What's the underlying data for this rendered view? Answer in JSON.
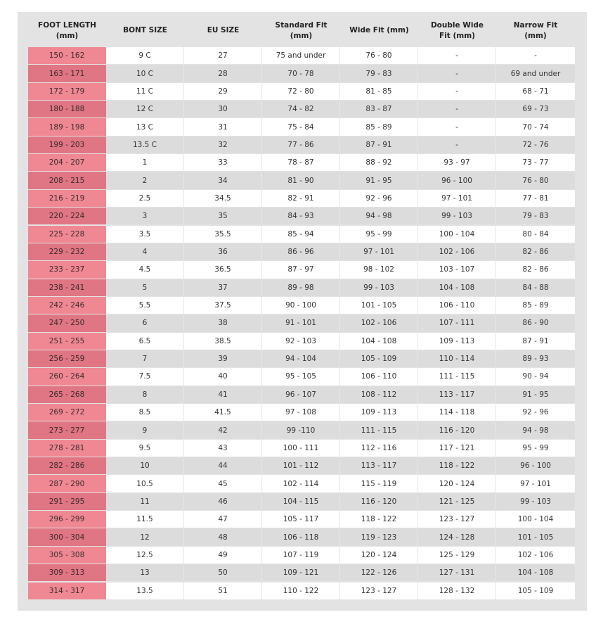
{
  "table": {
    "headers": [
      "FOOT LENGTH (mm)",
      "BONT SIZE",
      "EU SIZE",
      "Standard Fit (mm)",
      "Wide Fit (mm)",
      "Double Wide Fit (mm)",
      "Narrow Fit (mm)"
    ],
    "rows": [
      [
        "150 - 162",
        "9 C",
        "27",
        "75 and under",
        "76 - 80",
        "-",
        "-"
      ],
      [
        "163 - 171",
        "10 C",
        "28",
        "70 - 78",
        "79 - 83",
        "-",
        "69 and under"
      ],
      [
        "172 - 179",
        "11 C",
        "29",
        "72 - 80",
        "81 - 85",
        "-",
        "68 - 71"
      ],
      [
        "180 - 188",
        "12 C",
        "30",
        "74 - 82",
        "83 - 87",
        "-",
        "69 - 73"
      ],
      [
        "189 - 198",
        "13 C",
        "31",
        "75 - 84",
        "85 - 89",
        "-",
        "70 - 74"
      ],
      [
        "199 - 203",
        "13.5 C",
        "32",
        "77 - 86",
        "87 - 91",
        "-",
        "72 - 76"
      ],
      [
        "204 - 207",
        "1",
        "33",
        "78 - 87",
        "88 - 92",
        "93 - 97",
        "73 - 77"
      ],
      [
        "208 - 215",
        "2",
        "34",
        "81 - 90",
        "91 - 95",
        "96 - 100",
        "76 - 80"
      ],
      [
        "216 - 219",
        "2.5",
        "34.5",
        "82 - 91",
        "92 - 96",
        "97 - 101",
        "77 - 81"
      ],
      [
        "220 - 224",
        "3",
        "35",
        "84 - 93",
        "94 - 98",
        "99 - 103",
        "79 - 83"
      ],
      [
        "225 - 228",
        "3.5",
        "35.5",
        "85 - 94",
        "95 - 99",
        "100 - 104",
        "80 - 84"
      ],
      [
        "229 - 232",
        "4",
        "36",
        "86 - 96",
        "97 - 101",
        "102 - 106",
        "82 - 86"
      ],
      [
        "233 - 237",
        "4.5",
        "36.5",
        "87 - 97",
        "98 - 102",
        "103 - 107",
        "82 - 86"
      ],
      [
        "238 - 241",
        "5",
        "37",
        "89 - 98",
        "99 - 103",
        "104 - 108",
        "84 - 88"
      ],
      [
        "242 - 246",
        "5.5",
        "37.5",
        "90 - 100",
        "101 - 105",
        "106 - 110",
        "85 - 89"
      ],
      [
        "247 - 250",
        "6",
        "38",
        "91 - 101",
        "102 - 106",
        "107 - 111",
        "86 - 90"
      ],
      [
        "251 - 255",
        "6.5",
        "38.5",
        "92 - 103",
        "104 - 108",
        "109 - 113",
        "87 - 91"
      ],
      [
        "256 - 259",
        "7",
        "39",
        "94 - 104",
        "105 - 109",
        "110 - 114",
        "89 - 93"
      ],
      [
        "260 - 264",
        "7.5",
        "40",
        "95 - 105",
        "106 - 110",
        "111 - 115",
        "90 - 94"
      ],
      [
        "265 - 268",
        "8",
        "41",
        "96 - 107",
        "108 - 112",
        "113 - 117",
        "91 - 95"
      ],
      [
        "269 - 272",
        "8.5",
        "41.5",
        "97 - 108",
        "109 - 113",
        "114 - 118",
        "92 - 96"
      ],
      [
        "273 - 277",
        "9",
        "42",
        "99 -110",
        "111 - 115",
        "116 - 120",
        "94 - 98"
      ],
      [
        "278 - 281",
        "9.5",
        "43",
        "100 - 111",
        "112 - 116",
        "117 - 121",
        "95 - 99"
      ],
      [
        "282 - 286",
        "10",
        "44",
        "101 - 112",
        "113 - 117",
        "118 - 122",
        "96 - 100"
      ],
      [
        "287 - 290",
        "10.5",
        "45",
        "102 - 114",
        "115 - 119",
        "120 - 124",
        "97 - 101"
      ],
      [
        "291 - 295",
        "11",
        "46",
        "104 - 115",
        "116 - 120",
        "121 - 125",
        "99 - 103"
      ],
      [
        "296 - 299",
        "11.5",
        "47",
        "105 - 117",
        "118 - 122",
        "123 - 127",
        "100 - 104"
      ],
      [
        "300 - 304",
        "12",
        "48",
        "106 - 118",
        "119 - 123",
        "124 - 128",
        "101 - 105"
      ],
      [
        "305 - 308",
        "12.5",
        "49",
        "107 - 119",
        "120 - 124",
        "125 - 129",
        "102 - 106"
      ],
      [
        "309 - 313",
        "13",
        "50",
        "109 - 121",
        "122 - 126",
        "127 - 131",
        "104 - 108"
      ],
      [
        "314 - 317",
        "13.5",
        "51",
        "110 - 122",
        "123 - 127",
        "128 - 132",
        "105 - 109"
      ]
    ]
  }
}
